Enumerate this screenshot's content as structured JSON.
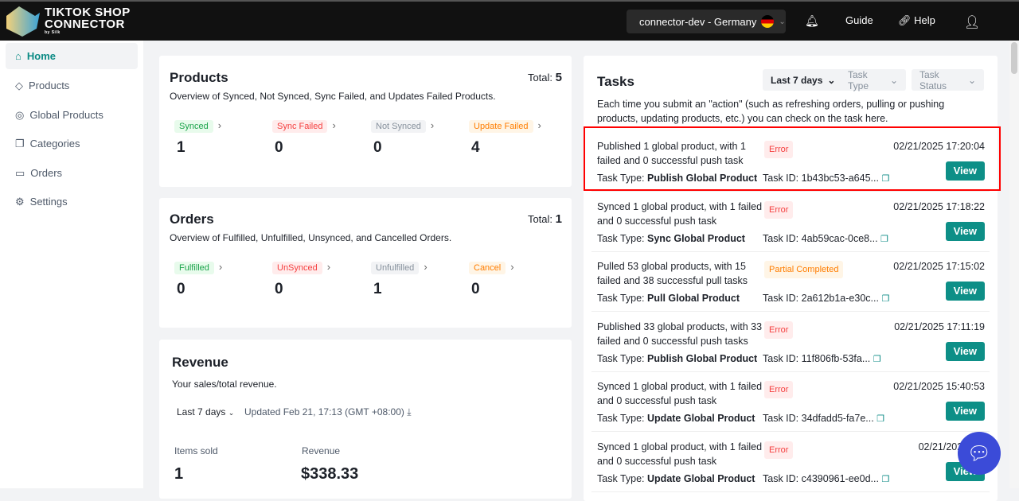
{
  "header": {
    "logo_line1": "TIKTOK SHOP",
    "logo_line2": "CONNECTOR",
    "logo_by": "by Silk",
    "store": "connector-dev  -  Germany",
    "guide": "Guide",
    "help": "Help"
  },
  "sidebar": {
    "items": [
      {
        "label": "Home",
        "icon": "home-icon"
      },
      {
        "label": "Products",
        "icon": "tag-icon"
      },
      {
        "label": "Global Products",
        "icon": "globe-icon"
      },
      {
        "label": "Categories",
        "icon": "copy-icon"
      },
      {
        "label": "Orders",
        "icon": "box-icon"
      },
      {
        "label": "Settings",
        "icon": "gear-icon"
      }
    ]
  },
  "products": {
    "title": "Products",
    "subtitle": "Overview of Synced, Not Synced, Sync Failed, and Updates Failed Products.",
    "total_label": "Total:",
    "total": "5",
    "stats": [
      {
        "label": "Synced",
        "value": "1"
      },
      {
        "label": "Sync Failed",
        "value": "0"
      },
      {
        "label": "Not Synced",
        "value": "0"
      },
      {
        "label": "Update Failed",
        "value": "4"
      }
    ]
  },
  "orders": {
    "title": "Orders",
    "subtitle": "Overview of Fulfilled, Unfulfilled, Unsynced, and Cancelled Orders.",
    "total_label": "Total:",
    "total": "1",
    "stats": [
      {
        "label": "Fulfilled",
        "value": "0"
      },
      {
        "label": "UnSynced",
        "value": "0"
      },
      {
        "label": "Unfulfilled",
        "value": "1"
      },
      {
        "label": "Cancel",
        "value": "0"
      }
    ]
  },
  "revenue": {
    "title": "Revenue",
    "subtitle": "Your sales/total revenue.",
    "period": "Last 7 days",
    "updated": "Updated Feb 21, 17:13 (GMT +08:00)",
    "items_sold_label": "Items sold",
    "items_sold": "1",
    "revenue_label": "Revenue",
    "revenue": "$338.33"
  },
  "tasks": {
    "title": "Tasks",
    "filters": [
      "Last 7 days",
      "Task Type",
      "Task Status"
    ],
    "intro": "Each time you submit an \"action\" (such as refreshing orders, pulling or pushing products, updating products, etc.) you can check on the task here.",
    "type_label": "Task Type:",
    "id_label": "Task ID:",
    "view_label": "View",
    "items": [
      {
        "desc": "Published 1 global product, with 1 failed and 0 successful push task",
        "status": "Error",
        "date": "02/21/2025 17:20:04",
        "type": "Publish Global Product",
        "id": "1b43bc53-a645..."
      },
      {
        "desc": "Synced 1 global product, with 1 failed and 0 successful push task",
        "status": "Error",
        "date": "02/21/2025 17:18:22",
        "type": "Sync Global Product",
        "id": "4ab59cac-0ce8..."
      },
      {
        "desc": "Pulled 53 global products, with 15 failed and 38 successful pull tasks",
        "status": "Partial Completed",
        "date": "02/21/2025 17:15:02",
        "type": "Pull Global Product",
        "id": "2a612b1a-e30c..."
      },
      {
        "desc": "Published 33 global products, with 33 failed and 0 successful push tasks",
        "status": "Error",
        "date": "02/21/2025 17:11:19",
        "type": "Publish Global Product",
        "id": "11f806fb-53fa..."
      },
      {
        "desc": "Synced 1 global product, with 1 failed and 0 successful push task",
        "status": "Error",
        "date": "02/21/2025 15:40:53",
        "type": "Update Global Product",
        "id": "34dfadd5-fa7e..."
      },
      {
        "desc": "Synced 1 global product, with 1 failed and 0 successful push task",
        "status": "Error",
        "date": "02/21/2025 15:",
        "type": "Update Global Product",
        "id": "c4390961-ee0d..."
      }
    ]
  },
  "colors": {
    "accent": "#0d8f87",
    "highlight": "#ff0000"
  }
}
